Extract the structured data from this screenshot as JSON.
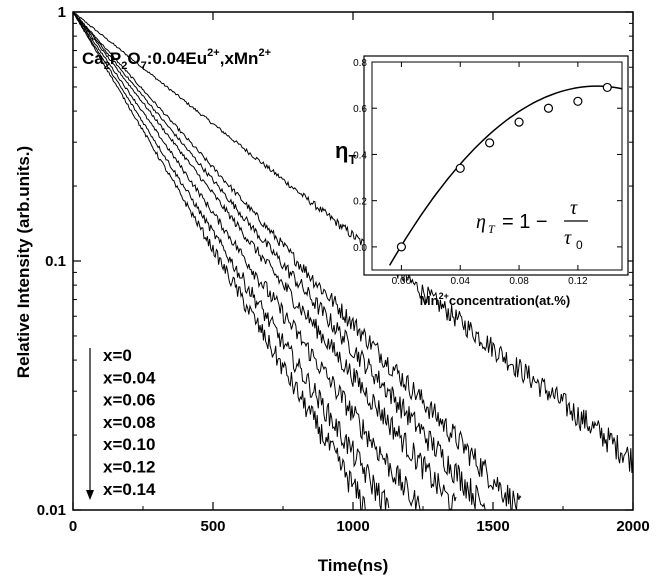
{
  "chart_data": [
    {
      "type": "line",
      "scale_y": "log",
      "title": "",
      "annotation_main": "Ca2P2O7:0.04Eu2+,xMn2+",
      "xlabel": "Time(ns)",
      "ylabel": "Relative Intensity (arb.units.)",
      "xlim": [
        0,
        2000
      ],
      "ylim": [
        0.01,
        1
      ],
      "x_ticks": [
        "0",
        "500",
        "1000",
        "1500",
        "2000"
      ],
      "y_ticks": [
        "0.01",
        "0.1",
        "1"
      ],
      "series": [
        {
          "label": "x=0",
          "x": [
            0,
            2000
          ],
          "y": [
            1.0,
            0.016
          ]
        },
        {
          "label": "x=0.04",
          "x": [
            0,
            1600
          ],
          "y": [
            1.0,
            0.01
          ]
        },
        {
          "label": "x=0.06",
          "x": [
            0,
            1480
          ],
          "y": [
            1.0,
            0.01
          ]
        },
        {
          "label": "x=0.08",
          "x": [
            0,
            1370
          ],
          "y": [
            1.0,
            0.01
          ]
        },
        {
          "label": "x=0.10",
          "x": [
            0,
            1240
          ],
          "y": [
            1.0,
            0.01
          ]
        },
        {
          "label": "x=0.12",
          "x": [
            0,
            1130
          ],
          "y": [
            1.0,
            0.01
          ]
        },
        {
          "label": "x=0.14",
          "x": [
            0,
            1050
          ],
          "y": [
            1.0,
            0.01
          ]
        }
      ],
      "legend_labels": [
        "x=0",
        "x=0.04",
        "x=0.06",
        "x=0.08",
        "x=0.10",
        "x=0.12",
        "x=0.14"
      ]
    },
    {
      "type": "scatter",
      "xlabel": "Mn2+concentration(at.%)",
      "ylabel": "ηT",
      "formula": "ηT = 1 − τ/τ0",
      "xlim": [
        -0.02,
        0.15
      ],
      "ylim": [
        -0.1,
        0.8
      ],
      "x_ticks": [
        "0.00",
        "0.04",
        "0.08",
        "0.12"
      ],
      "y_ticks": [
        "0.0",
        "0.2",
        "0.4",
        "0.6",
        "0.8"
      ],
      "points": {
        "x": [
          0.0,
          0.04,
          0.06,
          0.08,
          0.1,
          0.12,
          0.14
        ],
        "y": [
          0.0,
          0.34,
          0.45,
          0.54,
          0.6,
          0.63,
          0.69
        ]
      }
    }
  ]
}
